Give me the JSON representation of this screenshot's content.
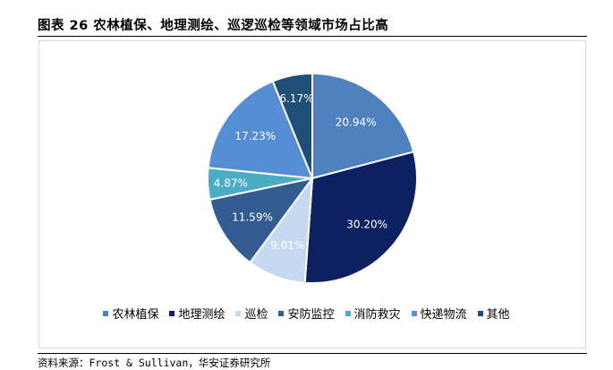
{
  "header": {
    "title": "图表 26 农林植保、地理测绘、巡逻巡检等领域市场占比高"
  },
  "footer": {
    "source": "资料来源：Frost & Sullivan，华安证券研究所"
  },
  "chart_data": {
    "type": "pie",
    "title": "",
    "legend_position": "bottom",
    "slices": [
      {
        "label": "农林植保",
        "value": 20.94,
        "value_label": "20.94%",
        "color": "#4e81bd"
      },
      {
        "label": "地理测绘",
        "value": 30.2,
        "value_label": "30.20%",
        "color": "#0d2160"
      },
      {
        "label": "巡检",
        "value": 9.01,
        "value_label": "9.01%",
        "color": "#c6d9f1"
      },
      {
        "label": "安防监控",
        "value": 11.59,
        "value_label": "11.59%",
        "color": "#335c91"
      },
      {
        "label": "消防救灾",
        "value": 4.87,
        "value_label": "4.87%",
        "color": "#4bacc6"
      },
      {
        "label": "快递物流",
        "value": 17.23,
        "value_label": "17.23%",
        "color": "#558ed5"
      },
      {
        "label": "其他",
        "value": 6.17,
        "value_label": "6.17%",
        "color": "#1f4e79"
      }
    ]
  }
}
